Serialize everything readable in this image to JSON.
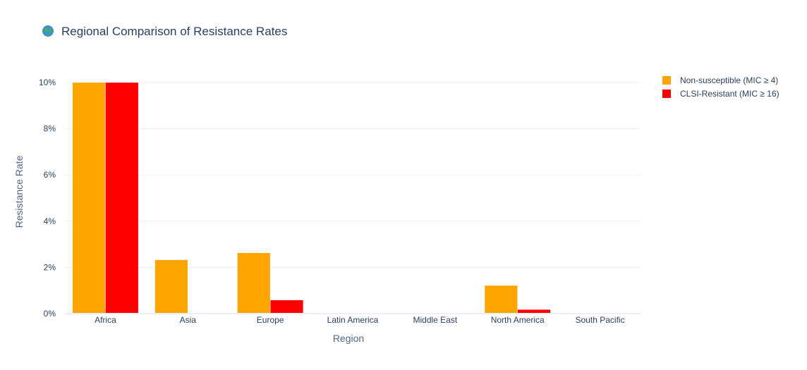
{
  "chart_data": {
    "type": "bar",
    "title": "Regional Comparison of Resistance Rates",
    "title_icon": "globe-icon",
    "xlabel": "Region",
    "ylabel": "Resistance Rate",
    "categories": [
      "Africa",
      "Asia",
      "Europe",
      "Latin America",
      "Middle East",
      "North America",
      "South Pacific"
    ],
    "y_ticks": [
      0,
      2,
      4,
      6,
      8,
      10
    ],
    "y_tick_labels": [
      "0%",
      "2%",
      "4%",
      "6%",
      "8%",
      "10%"
    ],
    "ylim": [
      0,
      10
    ],
    "grid": true,
    "legend_position": "top-right",
    "series": [
      {
        "name": "Non-susceptible (MIC ≥ 4)",
        "color": "#FFA500",
        "values": [
          10.0,
          2.33,
          2.63,
          0.0,
          0.0,
          1.22,
          0.0
        ]
      },
      {
        "name": "CLSI-Resistant (MIC ≥ 16)",
        "color": "#FF0000",
        "values": [
          10.0,
          0.0,
          0.59,
          0.0,
          0.0,
          0.18,
          0.0
        ]
      }
    ]
  }
}
